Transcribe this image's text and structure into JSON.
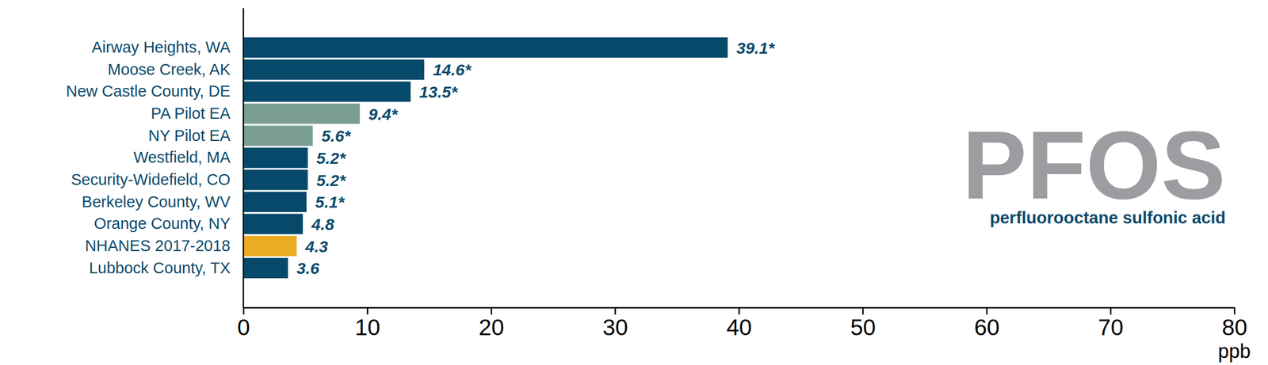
{
  "chart_data": {
    "type": "bar",
    "orientation": "horizontal",
    "title": "PFOS",
    "subtitle": "perfluorooctane sulfonic acid",
    "xlabel": "ppb",
    "categories": [
      "Airway Heights, WA",
      "Moose Creek, AK",
      "New Castle County, DE",
      "PA Pilot EA",
      "NY Pilot EA",
      "Westfield, MA",
      "Security-Widefield, CO",
      "Berkeley County, WV",
      "Orange County, NY",
      "NHANES 2017-2018",
      "Lubbock County, TX"
    ],
    "values": [
      39.1,
      14.6,
      13.5,
      9.4,
      5.6,
      5.2,
      5.2,
      5.1,
      4.8,
      4.3,
      3.6
    ],
    "value_labels": [
      "39.1*",
      "14.6*",
      "13.5*",
      "9.4*",
      "5.6*",
      "5.2*",
      "5.2*",
      "5.1*",
      "4.8",
      "4.3",
      "3.6"
    ],
    "colors": [
      "#07496b",
      "#07496b",
      "#07496b",
      "#7a9e93",
      "#7a9e93",
      "#07496b",
      "#07496b",
      "#07496b",
      "#07496b",
      "#ebab23",
      "#07496b"
    ],
    "xlim": [
      0,
      80
    ],
    "xticks": [
      0,
      10,
      20,
      30,
      40,
      50,
      60,
      70,
      80
    ],
    "data_labels": true,
    "grid": false
  }
}
